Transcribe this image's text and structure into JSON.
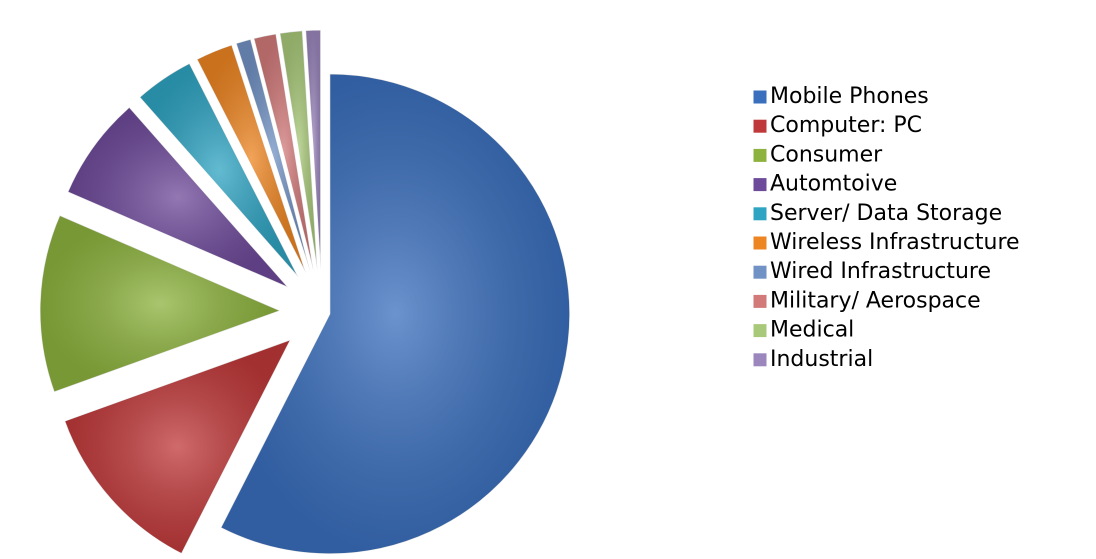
{
  "chart_data": {
    "type": "pie",
    "categories": [
      "Mobile Phones",
      "Computer: PC",
      "Consumer",
      "Automtoive",
      "Server/ Data Storage",
      "Wireless Infrastructure",
      "Wired Infrastructure",
      "Military/ Aerospace",
      "Medical",
      "Industrial"
    ],
    "values": [
      57.5,
      12,
      12,
      7,
      4,
      2.5,
      1,
      1.5,
      1.5,
      1
    ],
    "colors": [
      "#3a6fbd",
      "#c0393a",
      "#8db33e",
      "#6e4a9a",
      "#2fa4c2",
      "#ed8522",
      "#7192c4",
      "#d27a7a",
      "#a9c97a",
      "#9b87bd"
    ],
    "legend": "right"
  }
}
